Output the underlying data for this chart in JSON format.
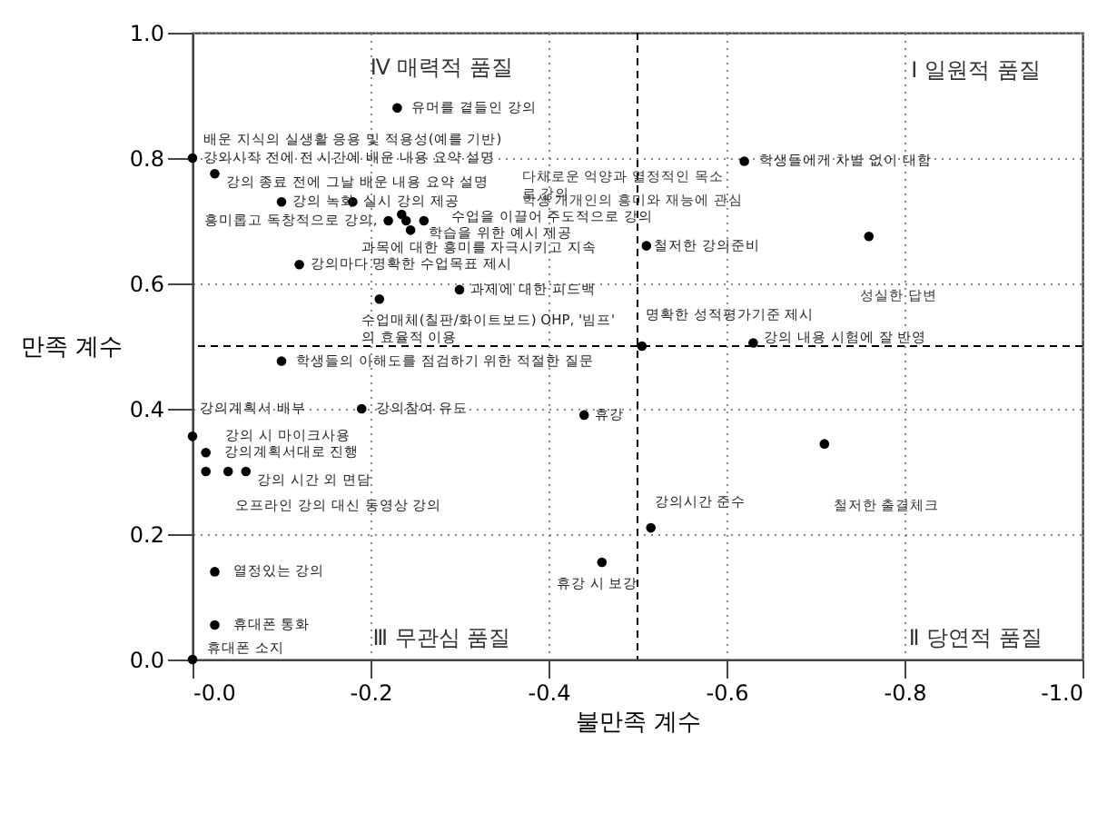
{
  "chart_data": {
    "type": "scatter",
    "xlabel": "불만족 계수",
    "ylabel": "만족 계수",
    "xlim": [
      0,
      -1
    ],
    "ylim": [
      0,
      1
    ],
    "xticks": [
      {
        "value": 0,
        "label": "-0.0"
      },
      -0.2,
      -0.4,
      -0.6,
      -0.8,
      {
        "value": -1,
        "label": "-1.0"
      }
    ],
    "yticks": [
      {
        "value": 0,
        "label": "0.0"
      },
      0.2,
      0.4,
      0.6,
      0.8,
      {
        "value": 1,
        "label": "1.0"
      }
    ],
    "grid": true,
    "marker": "circle",
    "x": [
      -0.23,
      0.0,
      -0.025,
      -0.1,
      -0.18,
      -0.22,
      -0.235,
      -0.24,
      -0.26,
      -0.245,
      -0.12,
      -0.3,
      -0.21,
      -0.1,
      -0.19,
      0.0,
      -0.015,
      -0.015,
      -0.04,
      -0.06,
      -0.025,
      -0.025,
      0.0,
      -0.46,
      -0.44,
      -0.71,
      -0.515,
      -0.62,
      -0.76,
      -0.51,
      -0.505,
      -0.63
    ],
    "series": [
      {
        "color": "#000000",
        "values": [
          0.88,
          0.8,
          0.775,
          0.73,
          0.73,
          0.7,
          0.71,
          0.7,
          0.7,
          0.685,
          0.63,
          0.59,
          0.575,
          0.476,
          0.4,
          0.356,
          0.33,
          0.3,
          0.3,
          0.3,
          0.14,
          0.055,
          0.0,
          0.155,
          0.39,
          0.344,
          0.21,
          0.795,
          0.675,
          0.66,
          0.5,
          0.505
        ]
      }
    ],
    "ref_lines": [
      {
        "axis": "x",
        "value": -0.5,
        "color": "#000000",
        "line_style": "dashed"
      },
      {
        "axis": "y",
        "value": 0.5,
        "color": "#000000",
        "line_style": "dashed"
      }
    ],
    "annotations": [
      "Ⅳ 매력적 품질",
      "Ⅰ 일원적 품질",
      "Ⅲ 무관심 품질",
      "Ⅱ 당연적 품질",
      "다채로운 억양과 열정적인 목소\n로 강의",
      "학생 개개인의 흥미와 재능에 관심",
      "철저한 출결체크",
      "성실한 답변",
      {
        "text": "유머를 곁들인 강의",
        "x": -0.23,
        "y": 0.88
      },
      {
        "text": "배운 지식의 실생활 응용 및 적용성(예를 기반)",
        "x": 0.0,
        "y": 0.8
      },
      {
        "text": "강의시작 전에 전 시간에 배운 내용 요약 설명",
        "x": 0.0,
        "y": 0.8
      },
      {
        "text": "강의 종료 전에 그날 배운 내용 요약 설명",
        "x": -0.025,
        "y": 0.775
      },
      {
        "text": "수업을 이끌어 주도적으로 강의",
        "x": -0.26,
        "y": 0.7
      },
      {
        "text": "학습을 위한 예시 제공",
        "x": -0.245,
        "y": 0.685
      },
      {
        "text": "흥미롭고 독창적으로 강의,",
        "x": -0.22,
        "y": 0.7
      },
      {
        "text": "강의 녹화",
        "x": -0.1,
        "y": 0.73
      },
      {
        "text": "실시 강의 제공",
        "x": -0.18,
        "y": 0.73
      },
      {
        "text": "과목에 대한 흥미를 자극시키고 지속",
        "x": -0.245,
        "y": 0.685
      },
      {
        "text": "강의마다 명확한 수업목표 제시",
        "x": -0.12,
        "y": 0.63
      },
      {
        "text": "과제에 대한 피드백",
        "x": -0.3,
        "y": 0.59
      },
      {
        "text": "수업매체(칠판/화이트보드) OHP, '빔프'\n의 효율적 이용",
        "x": -0.21,
        "y": 0.575
      },
      {
        "text": "학생들의 이해도를 점검하기 위한 적절한 질문",
        "x": -0.1,
        "y": 0.476
      },
      {
        "text": "강의참여 유도",
        "x": -0.19,
        "y": 0.4
      },
      {
        "text": "강의계획서 배부",
        "x": 0.0,
        "y": 0.356
      },
      {
        "text": "강의 시 마이크사용",
        "x": 0.0,
        "y": 0.356
      },
      {
        "text": "강의계획서대로 진행",
        "x": -0.015,
        "y": 0.33
      },
      {
        "text": "강의 시간 외 면담",
        "x": -0.06,
        "y": 0.3
      },
      {
        "text": "오프라인 강의 대신 동영상 강의",
        "x": -0.04,
        "y": 0.3
      },
      {
        "text": "열정있는 강의",
        "x": -0.025,
        "y": 0.14
      },
      {
        "text": "휴대폰 통화",
        "x": -0.025,
        "y": 0.055
      },
      {
        "text": "휴대폰 소지",
        "x": 0.0,
        "y": 0.0
      },
      {
        "text": "휴강",
        "x": -0.44,
        "y": 0.39
      },
      {
        "text": "휴강 시 보강",
        "x": -0.46,
        "y": 0.155
      },
      {
        "text": "강의시간 준수",
        "x": -0.515,
        "y": 0.21
      },
      {
        "text": "학생들에게 차별 없이 대함",
        "x": -0.62,
        "y": 0.795
      },
      {
        "text": "철저한 강의준비",
        "x": -0.51,
        "y": 0.66
      },
      {
        "text": "명확한 성적평가기준 제시",
        "x": -0.505,
        "y": 0.5
      },
      {
        "text": "강의 내용 시험에 잘 반영",
        "x": -0.63,
        "y": 0.505
      }
    ]
  }
}
